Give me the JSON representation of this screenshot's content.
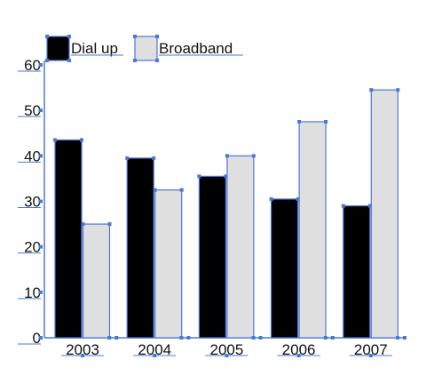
{
  "chart_data": {
    "type": "bar",
    "categories": [
      "2003",
      "2004",
      "2005",
      "2006",
      "2007"
    ],
    "series": [
      {
        "name": "Dial up",
        "values": [
          43.5,
          39.5,
          35.5,
          30.5,
          29
        ],
        "color": "#000000"
      },
      {
        "name": "Broadband",
        "values": [
          25,
          32.5,
          40,
          47.5,
          54.5
        ],
        "color": "#e0dfe0"
      }
    ],
    "ylim": [
      0,
      60
    ],
    "yticks": [
      "0",
      "10",
      "20",
      "30",
      "40",
      "50",
      "60"
    ],
    "legend_position": "top-left",
    "grid": false,
    "selection_color": "#4a78d6"
  }
}
